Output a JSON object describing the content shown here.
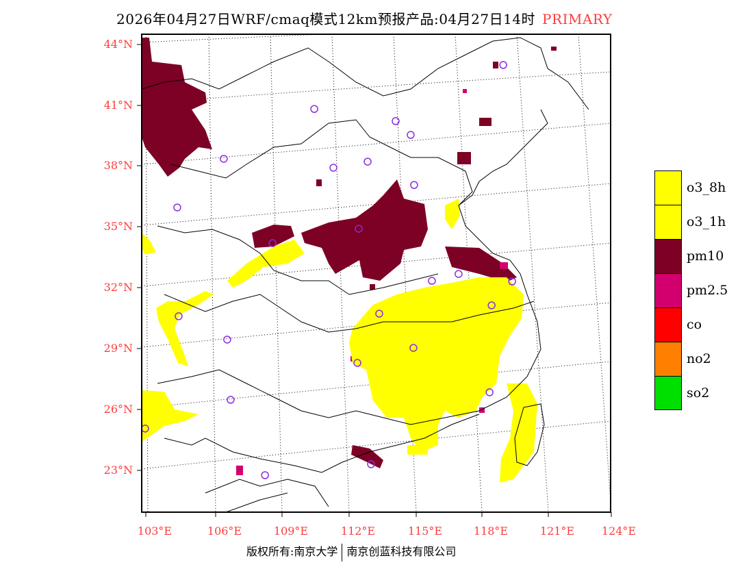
{
  "title": {
    "text": "2026年04月27日WRF/cmaq模式12km预报产品:04月27日14时",
    "primary": "PRIMARY"
  },
  "axes": {
    "lat_labels": [
      "44°N",
      "41°N",
      "38°N",
      "35°N",
      "32°N",
      "29°N",
      "26°N",
      "23°N"
    ],
    "lon_labels": [
      "103°E",
      "106°E",
      "109°E",
      "112°E",
      "115°E",
      "118°E",
      "121°E",
      "124°E"
    ]
  },
  "legend": [
    {
      "label": "o3_8h",
      "color": "#ffff00"
    },
    {
      "label": "o3_1h",
      "color": "#ffff00"
    },
    {
      "label": "pm10",
      "color": "#7d0025"
    },
    {
      "label": "pm2.5",
      "color": "#d2006e"
    },
    {
      "label": "co",
      "color": "#ff0000"
    },
    {
      "label": "no2",
      "color": "#ff7f00"
    },
    {
      "label": "so2",
      "color": "#00e000"
    }
  ],
  "stations": [
    [
      118.68,
      42.99
    ],
    [
      110.39,
      40.82
    ],
    [
      113.96,
      40.22
    ],
    [
      114.62,
      39.54
    ],
    [
      106.42,
      38.36
    ],
    [
      111.23,
      37.92
    ],
    [
      112.73,
      38.22
    ],
    [
      104.38,
      35.96
    ],
    [
      114.77,
      37.07
    ],
    [
      112.34,
      34.91
    ],
    [
      108.56,
      34.2
    ],
    [
      115.55,
      32.34
    ],
    [
      116.72,
      32.68
    ],
    [
      119.07,
      32.31
    ],
    [
      118.17,
      31.13
    ],
    [
      104.44,
      30.59
    ],
    [
      113.24,
      30.72
    ],
    [
      106.57,
      29.44
    ],
    [
      114.74,
      29.03
    ],
    [
      112.28,
      28.29
    ],
    [
      106.72,
      26.47
    ],
    [
      118.08,
      26.84
    ],
    [
      102.97,
      25.05
    ],
    [
      108.23,
      22.75
    ],
    [
      112.88,
      23.29
    ]
  ],
  "footer": {
    "left": "版权所有:南京大学",
    "right": "南京创蓝科技有限公司"
  }
}
